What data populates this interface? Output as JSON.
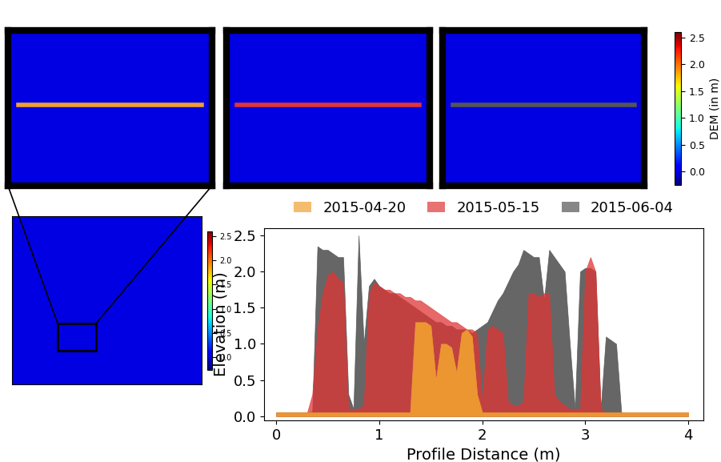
{
  "chart_data": [
    {
      "type": "area",
      "xlabel": "Profile Distance (m)",
      "ylabel": "Elevation (m)",
      "xlim": [
        -0.12,
        4.15
      ],
      "ylim": [
        -0.06,
        2.6
      ],
      "xticks": [
        0,
        1,
        2,
        3,
        4
      ],
      "yticks": [
        {
          "value": 0.0,
          "label": "0.0"
        },
        {
          "value": 0.5,
          "label": "0.5"
        },
        {
          "value": 1.0,
          "label": "1.0"
        },
        {
          "value": 1.5,
          "label": "1.5"
        },
        {
          "value": 2.0,
          "label": "2.0"
        },
        {
          "value": 2.5,
          "label": "2.5"
        }
      ],
      "legend": "top",
      "x": [
        0,
        0.05,
        0.1,
        0.15,
        0.2,
        0.25,
        0.3,
        0.35,
        0.4,
        0.45,
        0.5,
        0.55,
        0.6,
        0.65,
        0.7,
        0.75,
        0.8,
        0.85,
        0.9,
        0.95,
        1.0,
        1.05,
        1.1,
        1.15,
        1.2,
        1.25,
        1.3,
        1.35,
        1.4,
        1.45,
        1.5,
        1.55,
        1.6,
        1.65,
        1.7,
        1.75,
        1.8,
        1.85,
        1.9,
        1.95,
        2.0,
        2.05,
        2.1,
        2.15,
        2.2,
        2.25,
        2.3,
        2.35,
        2.4,
        2.45,
        2.5,
        2.55,
        2.6,
        2.65,
        2.7,
        2.75,
        2.8,
        2.85,
        2.9,
        2.95,
        3.0,
        3.05,
        3.1,
        3.15,
        3.2,
        3.25,
        3.3,
        3.35,
        3.4,
        3.45,
        3.5,
        3.55,
        3.6,
        3.65,
        3.7,
        3.75,
        3.8,
        3.85,
        3.9,
        3.95,
        4.0
      ],
      "series": [
        {
          "name": "2015-04-20",
          "color": "#f0a030",
          "values": [
            0.05,
            0.05,
            0.05,
            0.05,
            0.05,
            0.05,
            0.05,
            0.05,
            0.05,
            0.05,
            0.05,
            0.05,
            0.05,
            0.05,
            0.05,
            0.05,
            0.05,
            0.05,
            0.05,
            0.05,
            0.05,
            0.05,
            0.05,
            0.05,
            0.05,
            0.05,
            0.05,
            1.3,
            1.3,
            1.3,
            1.25,
            0.5,
            1.0,
            1.0,
            0.95,
            0.6,
            1.15,
            1.2,
            1.1,
            0.3,
            0.05,
            0.05,
            0.05,
            0.05,
            0.05,
            0.05,
            0.05,
            0.05,
            0.05,
            0.05,
            0.05,
            0.05,
            0.05,
            0.05,
            0.05,
            0.05,
            0.05,
            0.05,
            0.05,
            0.05,
            0.05,
            0.05,
            0.05,
            0.05,
            0.05,
            0.05,
            0.05,
            0.05,
            0.05,
            0.05,
            0.05,
            0.05,
            0.05,
            0.05,
            0.05,
            0.05,
            0.05,
            0.05,
            0.05,
            0.05,
            0.05
          ]
        },
        {
          "name": "2015-05-15",
          "color": "#e03535",
          "values": [
            0.05,
            0.05,
            0.05,
            0.05,
            0.05,
            0.05,
            0.05,
            0.3,
            1.2,
            1.7,
            1.95,
            2.0,
            1.9,
            1.85,
            0.1,
            0.1,
            0.1,
            0.15,
            1.7,
            1.85,
            1.8,
            1.75,
            1.75,
            1.7,
            1.7,
            1.65,
            1.65,
            1.6,
            1.6,
            1.55,
            1.5,
            1.45,
            1.4,
            1.35,
            1.3,
            1.3,
            1.25,
            1.2,
            1.2,
            1.15,
            0.2,
            1.2,
            1.25,
            1.2,
            1.15,
            0.2,
            0.15,
            0.15,
            0.2,
            1.7,
            1.7,
            1.65,
            1.7,
            1.7,
            0.3,
            0.2,
            0.15,
            0.1,
            0.1,
            0.1,
            2.0,
            2.2,
            2.0,
            0.1,
            0.05,
            0.05,
            0.05,
            0.05,
            0.05,
            0.05,
            0.05,
            0.05,
            0.05,
            0.05,
            0.05,
            0.05,
            0.05,
            0.05,
            0.05,
            0.05,
            0.05
          ]
        },
        {
          "name": "2015-06-04",
          "color": "#555555",
          "values": [
            0.05,
            0.05,
            0.05,
            0.05,
            0.05,
            0.05,
            0.05,
            0.06,
            2.35,
            2.3,
            2.3,
            2.25,
            2.2,
            2.2,
            0.3,
            0.1,
            2.5,
            1.0,
            1.8,
            1.9,
            1.8,
            1.75,
            1.7,
            1.7,
            1.65,
            1.6,
            1.55,
            1.5,
            1.45,
            1.4,
            1.35,
            1.3,
            1.3,
            1.25,
            1.25,
            1.2,
            1.2,
            1.2,
            1.15,
            1.2,
            1.25,
            1.3,
            1.45,
            1.6,
            1.7,
            1.85,
            2.0,
            2.1,
            2.3,
            2.25,
            2.2,
            2.2,
            1.6,
            2.3,
            2.2,
            2.1,
            2.0,
            1.0,
            0.1,
            2.0,
            2.05,
            2.05,
            2.0,
            0.1,
            1.1,
            1.05,
            1.0,
            0.05,
            0.04,
            0.04,
            0.04,
            0.04,
            0.04,
            0.04,
            0.04,
            0.04,
            0.04,
            0.04,
            0.04,
            0.04,
            0.04
          ]
        }
      ]
    },
    {
      "type": "image",
      "colorbar": {
        "label": "DEM (in m)",
        "range": [
          -0.25,
          2.6
        ],
        "ticks": [
          {
            "value": 0.0,
            "label": "0.0"
          },
          {
            "value": 0.5,
            "label": "0.5"
          },
          {
            "value": 1.0,
            "label": "1.0"
          },
          {
            "value": 1.5,
            "label": "1.5"
          },
          {
            "value": 2.0,
            "label": "2.0"
          },
          {
            "value": 2.5,
            "label": "2.5"
          }
        ]
      }
    }
  ]
}
